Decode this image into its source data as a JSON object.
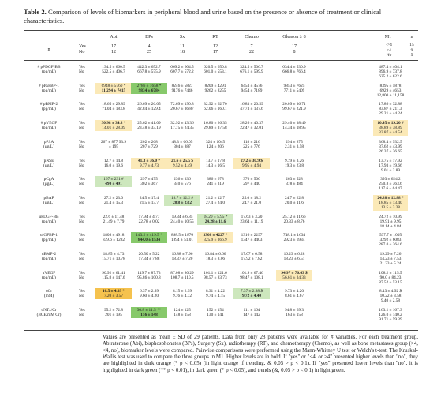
{
  "caption": {
    "label": "Table 2.",
    "text": "Comparison of levels of biomarkers in peripheral blood and urine based on the presence or absence of treatment or clinical characteristics."
  },
  "colors": {
    "dark_orange": "#f5c24e",
    "light_orange": "#fbe9b7",
    "dark_green": "#87c96b",
    "light_green": "#cde7bd"
  },
  "columns": [
    {
      "name": "Abi",
      "yes_n": "17",
      "no_n": "12"
    },
    {
      "name": "BPs",
      "yes_n": "4",
      "no_n": "25"
    },
    {
      "name": "Sx",
      "yes_n": "11",
      "no_n": "18"
    },
    {
      "name": "RT",
      "yes_n": "12",
      "no_n": "17"
    },
    {
      "name": "Chemo",
      "yes_n": "7",
      "no_n": "22"
    },
    {
      "name": "Gleason ≥ 8",
      "yes_n": "17",
      "no_n": "8"
    }
  ],
  "m1": {
    "name": "M1",
    "n_header": "n",
    "rows": [
      [
        "->4",
        "15"
      ],
      [
        "<4",
        "9"
      ],
      [
        "No",
        "5"
      ]
    ]
  },
  "n_label": "n",
  "yes_label": "Yes",
  "no_label": "No",
  "rows": [
    {
      "label": "# pPDGF-BB\n(pg/mL)",
      "cells": [
        [
          "134.5 ± 660.5",
          "522.5 ± 406.7"
        ],
        [
          "442.3 ± 652.7",
          "667.8 ± 575.9"
        ],
        [
          "669.2 ± 604.5",
          "607.7 ± 572.2"
        ],
        [
          "620.5 ± 650.8",
          "601.0 ± 553.1"
        ],
        [
          "324.5 ± 506.7",
          "676.1 ± 599.9"
        ],
        [
          "634.4 ± 530.9",
          "666.8 ± 766.4"
        ]
      ],
      "m1": [
        "487.4 ± 404.1",
        "896.9 ± 737.8",
        "625.2 ± 622.6"
      ]
    },
    {
      "label": "# pIGFBP-1\n(pg/mL)",
      "cells": [
        [
          "6948 ± 5760 *",
          "11,294 ± 7415"
        ],
        [
          "2786 ± 1658 *",
          "9834 ± 6784"
        ],
        [
          "8246 ± 5827",
          "9176 ± 7446"
        ],
        [
          "8209 ± 4291",
          "9262 ± 8255"
        ],
        [
          "6453 ± 4576",
          "9454 ± 7189"
        ],
        [
          "9853 ± 7625",
          "7711 ± 5409"
        ]
      ],
      "m1": [
        "8395 ± 5878",
        "6929 ± 4653",
        "12,800 ± 11,158"
      ]
    },
    {
      "label": "# pBMP-2\n(pg/mL)",
      "cells": [
        [
          "18.65 ± 29.89",
          "71.04 ± 183.8"
        ],
        [
          "26.69 ± 26.05",
          "42.84 ± 129.4"
        ],
        [
          "72.69 ± 190.8",
          "20.67 ± 36.87"
        ],
        [
          "32.92 ± 62.70",
          "62.06 ± 160.1"
        ],
        [
          "16.83 ± 20.59",
          "47.73 ± 137.6"
        ],
        [
          "20.09 ± 36.71",
          "99.67 ± 221.9"
        ]
      ],
      "m1": [
        "17.86 ± 32.88",
        "83.87 ± 211.3",
        "29.21 ± 44.24"
      ]
    },
    {
      "label": "# pVEGF\n(pg/mL)",
      "cells": [
        [
          "30.98 ± 34.8 *",
          "14.01 ± 28.09"
        ],
        [
          "25.62 ± 41.09",
          "23.48 ± 33.19"
        ],
        [
          "32.92 ± 43.36",
          "17.75 ± 24.35"
        ],
        [
          "16.80 ± 26.35",
          "29.89 ± 37.58"
        ],
        [
          "28.26 ± 40.37",
          "22.47 ± 32.01"
        ],
        [
          "29.40 ± 38.49",
          "14.34 ± 18.95"
        ]
      ],
      "m1": [
        "10.45 ± 19.20 #",
        "38.89 ± 38.89",
        "33.87 ± 44.54"
      ]
    },
    {
      "label": "pPSA\n(μg/L)",
      "cells": [
        [
          "267 ± 877 93.9",
          "± 195"
        ],
        [
          "202 ± 268",
          "207 ± 729"
        ],
        [
          "48.3 ± 66.05",
          "304 ± 887"
        ],
        [
          "324 ± 1045",
          "124 ± 206"
        ],
        [
          "118 ± 216",
          "225 ± 776"
        ],
        [
          "294 ± 875",
          "2.31 ± 3.58"
        ]
      ],
      "m1": [
        "368.4 ± 932.5",
        "37.62 ± 43.99",
        "26.37 ± 36.65"
      ]
    },
    {
      "label": "pNSE\n(μg/L)",
      "cells": [
        [
          "12.7 ± 14.8",
          "16.0 ± 19.6"
        ],
        [
          "41.3 ± 36.0 *",
          "9.77 ± 4.73"
        ],
        [
          "21.6 ± 25.5 $",
          "9.52 ± 4.49"
        ],
        [
          "13.7 ± 17.8",
          "14.3 ± 16.5"
        ],
        [
          "27.2 ± 30.9 $",
          "9.95 ± 4.94"
        ],
        [
          "9.79 ± 3.26",
          "19.3 ± 23.8"
        ]
      ],
      "m1": [
        "13.75 ± 17.92",
        "17.93 ± 19.66",
        "9.01 ± 2.89"
      ]
    },
    {
      "label": "pCgA\n(μg/L)",
      "cells": [
        [
          "167 ± 231 #",
          "490 ± 491"
        ],
        [
          "297 ± 475",
          "302 ± 367"
        ],
        [
          "236 ± 336",
          "340 ± 576"
        ],
        [
          "386 ± 678",
          "241 ± 319"
        ],
        [
          "370 ± 506",
          "297 ± 440"
        ],
        [
          "263 ± 528",
          "378 ± 484"
        ]
      ],
      "m1": [
        "393 ± 624.2",
        "250.8 ± 363.6",
        "117.6 ± 64.47"
      ]
    },
    {
      "label": "pBAP\n(μg/L)",
      "cells": [
        [
          "27.2 ± 23.0",
          "21.4 ± 15.3"
        ],
        [
          "24.5 ± 17.4",
          "21.5 ± 13.7"
        ],
        [
          "18.7 ± 12.2 #",
          "28.8 ± 23.2"
        ],
        [
          "21.2 ± 12.7",
          "27.4 ± 24.0"
        ],
        [
          "25.0 ± 18.2",
          "24.7 ± 21.0"
        ],
        [
          "24.7 ± 22.8",
          "20.0 ± 11.6"
        ]
      ],
      "m1": [
        "24.88 ± 12.88 *",
        "18.85 ± 13.40",
        "13.5 ± 3.38"
      ]
    },
    {
      "label": "uPDGF-BB\n(pg/mL)",
      "cells": [
        [
          "22.6 ± 11.48",
          "21.49 ± 7.79"
        ],
        [
          "17.94 ± 4.77",
          "22.78 ± 0.02"
        ],
        [
          "19.34 ± 6.85",
          "24.40 ± 10.55"
        ],
        [
          "18.20 ± 5.95 *",
          "24.28 ± 11.6"
        ],
        [
          "17.63 ± 3.20",
          "23.64 ± 11.19"
        ],
        [
          "25.12 ± 11.66",
          "20.33 ± 8.76"
        ]
      ],
      "m1": [
        "24.72 ± 10.99",
        "19.91 ± 9.95",
        "18.14 ± 4.84"
      ]
    },
    {
      "label": "uIGFBP-1\n(pg/mL)",
      "cells": [
        [
          "1808 ± 4918",
          "839.6 ± 1282"
        ],
        [
          "143.2 ± 419.5 *",
          "844.0 ± 1534"
        ],
        [
          "898.5 ± 1876",
          "1894 ± 51.01"
        ],
        [
          "3308 ± 4227 *",
          "325.9 ± 366.9"
        ],
        [
          "1316 ± 2297",
          "1347 ± 4403"
        ],
        [
          "748.1 ± 1634",
          "2923 ± 6934"
        ]
      ],
      "m1": [
        "537.7 ± 1005",
        "3292 ± 6083",
        "287.0 ± 264.6"
      ]
    },
    {
      "label": "uBMP-2\n(pg/mL)",
      "cells": [
        [
          "18.85 ± 4.73",
          "15.71 ± 10.78"
        ],
        [
          "20.50 ± 5.22",
          "17.34 ± 7.88"
        ],
        [
          "16.88 ± 7.96",
          "18.37 ± 7.20"
        ],
        [
          "16.84 ± 6.66",
          "18.3 ± 8.06"
        ],
        [
          "17.07 ± 6.58",
          "17.92 ± 7.82"
        ],
        [
          "16.23 ± 6.28",
          "18.23 ± 6.51"
        ]
      ],
      "m1": [
        "19.29 ± 7.26",
        "14.23 ± 7.53",
        "21.33 ± 5.24"
      ]
    },
    {
      "label": "uVEGF\n(pg/mL)",
      "cells": [
        [
          "90.92 ± 61.41",
          "115.8 ± 147.6"
        ],
        [
          "119.7 ± 87.73",
          "95.86 ± 100.8"
        ],
        [
          "87.08 ± 80.29",
          "108.7 ± 110.5"
        ],
        [
          "101.1 ± 121.6",
          "98.57 ± 83.73"
        ],
        [
          "101.9 ± 67.46",
          "98.47 ± 108.1"
        ],
        [
          "94.97 ± 76.43 $",
          "56.61 ± 34.33"
        ]
      ],
      "m1": [
        "108.2 ± 115.5",
        "90.0 ± 84.23",
        "87.52 ± 53.15"
      ]
    },
    {
      "label": "uCr\n(mM)",
      "cells": [
        [
          "10.5 ± 4.09 *",
          "7.20 ± 3.57"
        ],
        [
          "6.37 ± 2.99",
          "9.60 ± 4.20"
        ],
        [
          "8.15 ± 2.99",
          "9.76 ± 4.72"
        ],
        [
          "8.31 ± 4.22",
          "9.74 ± 4.15"
        ],
        [
          "7.37 ± 2.88 $",
          "9.72 ± 4.40"
        ],
        [
          "9.73 ± 4.20",
          "8.61 ± 4.67"
        ]
      ],
      "m1": [
        "8.43 ± 4.92 $",
        "10.22 ± 3.58",
        "9.40 ± 2.58"
      ]
    },
    {
      "label": "uNTx/Cr\n(BCE/mM Cr)",
      "cells": [
        [
          "95.2 ± 72.8",
          "201 ± 195"
        ],
        [
          "30.8 ± 11.5 **",
          "156 ± 148"
        ],
        [
          "124 ± 125",
          "148 ± 158"
        ],
        [
          "152 ± 154",
          "130 ± 141"
        ],
        [
          "111 ± 164",
          "147 ± 142"
        ],
        [
          "94.8 ± 69.3",
          "163 ± 158"
        ]
      ],
      "m1": [
        "163.1 ± 167.3",
        "126.0 ± 140.2",
        "91.71 ± 59.39"
      ]
    }
  ],
  "footnote": "Values are presented as mean ± SD of 29 patients. Data from only 28 patients were available for # variables. For each treatment group, Abiraterone (Abi), bisphosphonates (BPs), Surgery (Sx), radiotherapy (RT), and chemotherapy (Chemo), as well as bone metastases group (>4, <4, no), biomarker levels were compared. Pairwise comparisons were performed using the Mann-Whitney U test or Welch's t-test. The Kruskal-Wallis test was used to compare the three groups in M1. Higher levels are in bold. If \"yes\" or \"<4, or >4\" presented higher levels than \"no\", they are highlighted in dark orange (* p < 0.05) (in light orange if trending, & 0.05 > p < 0.1). If \"yes\" presented lower levels than \"no\", it is highlighted in dark green (** p < 0.01), in dark green (* p < 0.05), and trends (&, 0.05 > p < 0.1) in light green."
}
